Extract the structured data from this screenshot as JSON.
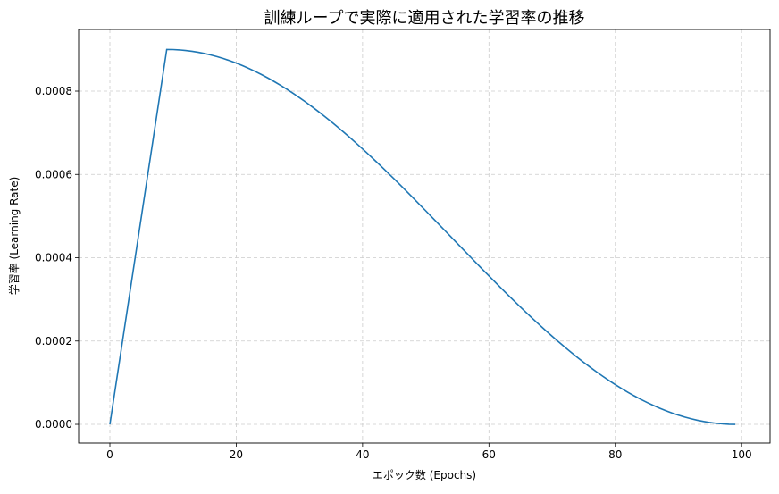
{
  "chart_data": {
    "type": "line",
    "title": "訓練ループで実際に適用された学習率の推移",
    "xlabel": "エポック数 (Epochs)",
    "ylabel": "学習率 (Learning Rate)",
    "xlim": [
      -4.95,
      104.5
    ],
    "ylim": [
      -4.5e-05,
      0.000948
    ],
    "xticks": [
      0,
      20,
      40,
      60,
      80,
      100
    ],
    "xtick_labels": [
      "0",
      "20",
      "40",
      "60",
      "80",
      "100"
    ],
    "yticks": [
      0,
      0.0002,
      0.0004,
      0.0006,
      0.0008
    ],
    "ytick_labels": [
      "0.0000",
      "0.0002",
      "0.0004",
      "0.0006",
      "0.0008"
    ],
    "grid": true,
    "grid_style": "dashed",
    "series": [
      {
        "name": "learning_rate",
        "color": "#1f77b4",
        "x": [
          0,
          1,
          2,
          3,
          4,
          5,
          6,
          7,
          8,
          9,
          10,
          11,
          12,
          13,
          14,
          15,
          16,
          17,
          18,
          19,
          20,
          21,
          22,
          23,
          24,
          25,
          26,
          27,
          28,
          29,
          30,
          31,
          32,
          33,
          34,
          35,
          36,
          37,
          38,
          39,
          40,
          41,
          42,
          43,
          44,
          45,
          46,
          47,
          48,
          49,
          50,
          51,
          52,
          53,
          54,
          55,
          56,
          57,
          58,
          59,
          60,
          61,
          62,
          63,
          64,
          65,
          66,
          67,
          68,
          69,
          70,
          71,
          72,
          73,
          74,
          75,
          76,
          77,
          78,
          79,
          80,
          81,
          82,
          83,
          84,
          85,
          86,
          87,
          88,
          89,
          90,
          91,
          92,
          93,
          94,
          95,
          96,
          97,
          98,
          99
        ],
        "values": [
          0,
          0.0001,
          0.0002,
          0.0003,
          0.0004,
          0.0005,
          0.0006,
          0.0007,
          0.0008,
          0.0009,
          0.00089973,
          0.0008989,
          0.00089753,
          0.00089562,
          0.00089316,
          0.00089017,
          0.00088663,
          0.00088257,
          0.00087798,
          0.00087286,
          0.00086723,
          0.0008611,
          0.00085446,
          0.00084733,
          0.00083971,
          0.00083162,
          0.00082307,
          0.00081406,
          0.00080461,
          0.00079472,
          0.00078441,
          0.0007737,
          0.0007626,
          0.00075111,
          0.00073926,
          0.00072705,
          0.0007145,
          0.00070164,
          0.00068846,
          0.000675,
          0.00066126,
          0.00064727,
          0.00063303,
          0.00061857,
          0.00060391,
          0.00058906,
          0.00057404,
          0.00055886,
          0.00054356,
          0.00052814,
          0.00051263,
          0.00049704,
          0.00048139,
          0.0004657,
          0.00045,
          0.0004343,
          0.00041861,
          0.00040296,
          0.00038737,
          0.00037186,
          0.00035644,
          0.00034114,
          0.00032596,
          0.00031094,
          0.00029609,
          0.00028143,
          0.00026697,
          0.00025273,
          0.00023874,
          0.000225,
          0.00021154,
          0.00019836,
          0.0001855,
          0.00017295,
          0.00016074,
          0.00014889,
          0.0001374,
          0.0001263,
          0.00011559,
          0.00010528,
          9.539e-05,
          8.594e-05,
          7.693e-05,
          6.838e-05,
          6.029e-05,
          5.267e-05,
          4.554e-05,
          3.89e-05,
          3.277e-05,
          2.714e-05,
          2.202e-05,
          1.743e-05,
          1.337e-05,
          9.83e-06,
          6.84e-06,
          4.38e-06,
          2.47e-06,
          1.1e-06,
          2.7e-07,
          0
        ]
      }
    ]
  }
}
